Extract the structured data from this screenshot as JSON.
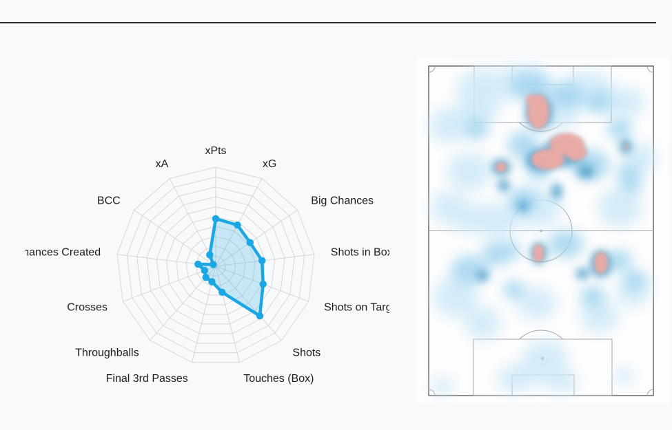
{
  "page": {
    "background": "#f8f9fb",
    "divider_color": "#2e2e2e"
  },
  "chart_data": [
    {
      "type": "radar",
      "categories": [
        "xPts",
        "xG",
        "Big Chances",
        "Shots in Box",
        "Shots on Target",
        "Shots",
        "Touches (Box)",
        "Final 3rd Passes",
        "Throughballs",
        "Crosses",
        "Chances Created",
        "BCC",
        "xA"
      ],
      "values": [
        0.48,
        0.47,
        0.42,
        0.47,
        0.51,
        0.67,
        0.27,
        0.16,
        0.15,
        0.12,
        0.18,
        0.03,
        0.13
      ],
      "scale": {
        "min": 0,
        "max": 1,
        "rings": 10
      },
      "grid_color": "#d7d7d7",
      "line_color": "#1aa7e3",
      "fill_opacity": 0.22,
      "label_color": "#1c1c1c",
      "legend": false,
      "grid": true
    },
    {
      "type": "heatmap",
      "pitch": {
        "background": "#fdfdfe",
        "line_color": "#a3a3a3",
        "border_color": "#6f6f6f",
        "penalty_spot_color": "#3c3c3c"
      },
      "levels": {
        "light": "#cfe9f8",
        "medium": "#9fd3ee",
        "dark": "#4f9fc9",
        "hot": "#ecaaa4"
      },
      "blobs": {
        "light": [
          [
            0.24,
            0.07,
            38,
            30
          ],
          [
            0.22,
            0.13,
            30,
            24
          ],
          [
            0.09,
            0.18,
            28,
            26
          ],
          [
            0.42,
            0.05,
            42,
            26
          ],
          [
            0.58,
            0.14,
            30,
            24
          ],
          [
            0.7,
            0.07,
            40,
            26
          ],
          [
            0.88,
            0.11,
            26,
            22
          ],
          [
            0.18,
            0.32,
            32,
            28
          ],
          [
            0.18,
            0.46,
            28,
            22
          ],
          [
            0.09,
            0.43,
            26,
            24
          ],
          [
            0.3,
            0.47,
            32,
            26
          ],
          [
            0.48,
            0.43,
            36,
            28
          ],
          [
            0.85,
            0.43,
            32,
            28
          ],
          [
            0.94,
            0.28,
            22,
            24
          ],
          [
            0.12,
            0.7,
            32,
            30
          ],
          [
            0.24,
            0.78,
            26,
            24
          ],
          [
            0.48,
            0.72,
            28,
            24
          ],
          [
            0.76,
            0.76,
            28,
            24
          ],
          [
            0.91,
            0.68,
            24,
            24
          ],
          [
            0.52,
            0.885,
            32,
            26
          ],
          [
            0.45,
            0.93,
            26,
            20
          ],
          [
            0.38,
            0.95,
            24,
            20
          ],
          [
            0.59,
            0.955,
            24,
            18
          ],
          [
            0.06,
            0.97,
            16,
            12
          ],
          [
            0.87,
            0.94,
            14,
            12
          ]
        ],
        "medium": [
          [
            0.45,
            0.06,
            28,
            18
          ],
          [
            0.61,
            0.09,
            26,
            18
          ],
          [
            0.76,
            0.11,
            20,
            16
          ],
          [
            0.21,
            0.19,
            18,
            16
          ],
          [
            0.42,
            0.24,
            22,
            20
          ],
          [
            0.49,
            0.3,
            20,
            22
          ],
          [
            0.72,
            0.3,
            28,
            22
          ],
          [
            0.85,
            0.19,
            18,
            16
          ],
          [
            0.89,
            0.33,
            16,
            18
          ],
          [
            0.9,
            0.36,
            16,
            14
          ],
          [
            0.42,
            0.41,
            22,
            18
          ],
          [
            0.18,
            0.62,
            26,
            22
          ],
          [
            0.3,
            0.57,
            20,
            18
          ],
          [
            0.36,
            0.56,
            16,
            14
          ],
          [
            0.61,
            0.54,
            26,
            20
          ],
          [
            0.85,
            0.59,
            18,
            16
          ],
          [
            0.38,
            0.68,
            16,
            14
          ],
          [
            0.73,
            0.7,
            18,
            16
          ],
          [
            0.92,
            0.65,
            16,
            14
          ]
        ],
        "dark": [
          [
            0.49,
            0.14,
            20,
            26
          ],
          [
            0.6,
            0.26,
            30,
            22
          ],
          [
            0.5,
            0.285,
            22,
            16
          ],
          [
            0.57,
            0.38,
            8,
            12
          ],
          [
            0.322,
            0.307,
            14,
            12
          ],
          [
            0.334,
            0.363,
            9,
            9
          ],
          [
            0.877,
            0.244,
            9,
            11
          ],
          [
            0.7,
            0.32,
            12,
            10
          ],
          [
            0.49,
            0.568,
            12,
            16
          ],
          [
            0.767,
            0.6,
            16,
            20
          ],
          [
            0.684,
            0.63,
            10,
            8
          ],
          [
            0.24,
            0.635,
            9,
            8
          ],
          [
            0.42,
            0.425,
            8,
            8
          ]
        ],
        "hot": [
          [
            0.488,
            0.138,
            16,
            25
          ],
          [
            0.455,
            0.102,
            7,
            8
          ],
          [
            0.615,
            0.237,
            25,
            16
          ],
          [
            0.53,
            0.283,
            24,
            15
          ],
          [
            0.655,
            0.26,
            16,
            13
          ],
          [
            0.322,
            0.307,
            8,
            7
          ],
          [
            0.88,
            0.246,
            3,
            4
          ],
          [
            0.488,
            0.568,
            8,
            13
          ],
          [
            0.767,
            0.597,
            10,
            16
          ]
        ]
      }
    }
  ]
}
